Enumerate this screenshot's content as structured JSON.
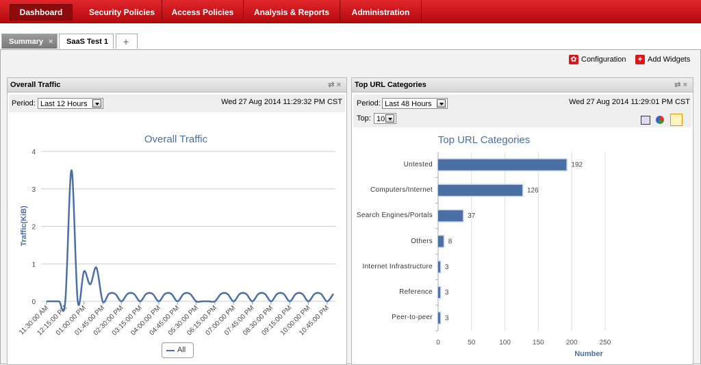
{
  "nav": {
    "items": [
      "Dashboard",
      "Security Policies",
      "Access Policies",
      "Analysis & Reports",
      "Administration"
    ],
    "active": 0
  },
  "tabs": {
    "items": [
      "Summary",
      "SaaS Test 1"
    ],
    "active": 0
  },
  "toolbar": [
    "Configuration",
    "Add Widgets"
  ],
  "widgets": [
    {
      "title": "Overall Traffic",
      "period_label": "Period:",
      "period": "Last 12 Hours",
      "timestamp": "Wed 27 Aug 2014 11:29:32 PM CST",
      "chart_data": {
        "type": "line",
        "title": "Overall Traffic",
        "y_label": "Traffic(KiB)",
        "categories": [
          "11:30:00 AM",
          null,
          null,
          "12:15:00 PM",
          null,
          null,
          "01:00:00 PM",
          null,
          null,
          "01:45:00 PM",
          null,
          null,
          "02:30:00 PM",
          null,
          null,
          "03:15:00 PM",
          null,
          null,
          "04:00:00 PM",
          null,
          null,
          "04:45:00 PM",
          null,
          null,
          "05:30:00 PM",
          null,
          null,
          "06:15:00 PM",
          null,
          null,
          "07:00:00 PM",
          null,
          null,
          "07:45:00 PM",
          null,
          null,
          "08:30:00 PM",
          null,
          null,
          "09:15:00 PM",
          null,
          null,
          "10:00:00 PM",
          null,
          null,
          "10:45:00 PM",
          null
        ],
        "series": [
          {
            "name": "All",
            "color": "#4a6fa5",
            "values": [
              0,
              0,
              0,
              0,
              3.5,
              0,
              0.8,
              0.45,
              0.9,
              0,
              0.2,
              0.2,
              0,
              0.2,
              0.2,
              0,
              0.2,
              0.2,
              0,
              0.2,
              0.2,
              0,
              0.2,
              0.2,
              0,
              0,
              0,
              0,
              0.2,
              0.2,
              0,
              0.2,
              0.2,
              0,
              0.2,
              0.2,
              0,
              0.2,
              0.2,
              0,
              0.2,
              0.2,
              0,
              0.2,
              0.2,
              0,
              0.2
            ]
          }
        ],
        "ylim": [
          0,
          4
        ],
        "yticks": [
          0,
          1,
          2,
          3,
          4
        ],
        "grid": true
      }
    },
    {
      "title": "Top URL Categories",
      "period_label": "Period:",
      "period": "Last 48 Hours",
      "top_label": "Top:",
      "top": "10",
      "timestamp": "Wed 27 Aug 2014 11:29:01 PM CST",
      "chart_data": {
        "type": "bar",
        "orientation": "horizontal",
        "title": "Top URL Categories",
        "x_label": "Number",
        "categories": [
          "Untested",
          "Computers/Internet",
          "Search Engines/Portals",
          "Others",
          "Internet Infrastructure",
          "Reference",
          "Peer-to-peer"
        ],
        "values": [
          192,
          126,
          37,
          8,
          3,
          3,
          3
        ],
        "color": "#4a6fa5",
        "xlim": [
          0,
          250
        ],
        "xticks": [
          0,
          50,
          100,
          150,
          200,
          250
        ],
        "grid": true
      }
    }
  ]
}
